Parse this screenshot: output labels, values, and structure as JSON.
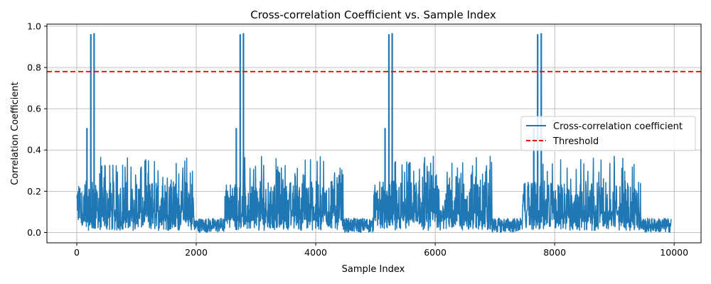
{
  "chart_data": {
    "type": "line",
    "title": "Cross-correlation Coefficient vs. Sample Index",
    "xlabel": "Sample Index",
    "ylabel": "Correlation Coefficient",
    "xlim": [
      -500,
      10450
    ],
    "ylim": [
      -0.05,
      1.01
    ],
    "xticks": [
      0,
      2000,
      4000,
      6000,
      8000,
      10000
    ],
    "xtick_labels": [
      "0",
      "2000",
      "4000",
      "6000",
      "8000",
      "10000"
    ],
    "yticks": [
      0.0,
      0.2,
      0.4,
      0.6,
      0.8,
      1.0
    ],
    "ytick_labels": [
      "0.0",
      "0.2",
      "0.4",
      "0.6",
      "0.8",
      "1.0"
    ],
    "grid": true,
    "legend_position": "center-right",
    "n_samples": 9950,
    "series": [
      {
        "name": "Cross-correlation coefficient",
        "color": "#1f77b4",
        "style": "solid",
        "active_bursts": [
          {
            "x_start": 0,
            "x_end": 1960,
            "baseline": 0.12,
            "amplitude_max": 0.37,
            "reduced_region_end": 300
          },
          {
            "x_start": 2480,
            "x_end": 4460,
            "baseline": 0.12,
            "amplitude_max": 0.37,
            "reduced_region_end": 2780
          },
          {
            "x_start": 4970,
            "x_end": 6950,
            "baseline": 0.12,
            "amplitude_max": 0.37,
            "reduced_region_end": 5270
          },
          {
            "x_start": 7460,
            "x_end": 9450,
            "baseline": 0.12,
            "amplitude_max": 0.37,
            "reduced_region_end": 7760
          }
        ],
        "quiet_level": [
          0.0,
          0.07
        ],
        "peaks": [
          {
            "x": 170,
            "y": 0.505
          },
          {
            "x": 235,
            "y": 0.96
          },
          {
            "x": 290,
            "y": 0.965
          },
          {
            "x": 2670,
            "y": 0.505
          },
          {
            "x": 2735,
            "y": 0.96
          },
          {
            "x": 2790,
            "y": 0.965
          },
          {
            "x": 5160,
            "y": 0.505
          },
          {
            "x": 5225,
            "y": 0.96
          },
          {
            "x": 5280,
            "y": 0.965
          },
          {
            "x": 7650,
            "y": 0.505
          },
          {
            "x": 7715,
            "y": 0.96
          },
          {
            "x": 7775,
            "y": 0.965
          }
        ]
      },
      {
        "name": "Threshold",
        "color": "#ff0000",
        "style": "dashed",
        "value": 0.78
      }
    ]
  }
}
